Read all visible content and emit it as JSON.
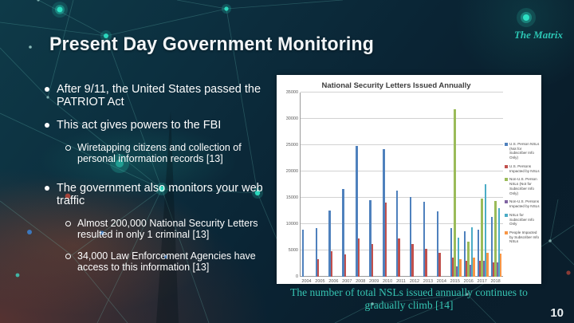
{
  "slide": {
    "title": "Present Day Government Monitoring",
    "watermark": "The Matrix",
    "caption": "The number of total NSLs issued annually continues to gradually climb [14]",
    "page_number": "10"
  },
  "bullets": [
    {
      "level": 1,
      "text": "After 9/11, the United States passed the PATRIOT Act"
    },
    {
      "level": 1,
      "text": "This act gives powers to the FBI"
    },
    {
      "level": 2,
      "text": "Wiretapping citizens and collection of personal information records [13]"
    },
    {
      "level": 1,
      "text": "The government also monitors your web traffic"
    },
    {
      "level": 2,
      "text": "Almost 200,000 National Security Letters resulted in only 1 criminal [13]"
    },
    {
      "level": 2,
      "text": "34,000 Law Enforcement Agencies have access to this information [13]"
    }
  ],
  "chart_data": {
    "type": "bar",
    "title": "National Security Letters Issued Annually",
    "categories": [
      "2004",
      "2005",
      "2006",
      "2007",
      "2008",
      "2009",
      "2010",
      "2011",
      "2012",
      "2013",
      "2014",
      "2015",
      "2016",
      "2017",
      "2018"
    ],
    "series": [
      {
        "name": "U.S. Person NSLs (Not for Subscriber Info Only)",
        "color": "#4F81BD",
        "values": [
          8900,
          9300,
          12600,
          16700,
          24800,
          14600,
          24300,
          16400,
          15100,
          14200,
          12400,
          9300,
          8700,
          8900,
          11400
        ]
      },
      {
        "name": "U.S. Persons Impacted by NSLs",
        "color": "#C0504D",
        "values": [
          null,
          3400,
          4800,
          4300,
          7200,
          6200,
          14100,
          7200,
          6200,
          5300,
          4600,
          3600,
          3100,
          3000,
          2700
        ]
      },
      {
        "name": "Non-U.S. Person NSLs (Not for Subscriber Info Only)",
        "color": "#9BBB59",
        "values": [
          null,
          null,
          null,
          null,
          null,
          null,
          null,
          null,
          null,
          null,
          null,
          31800,
          6600,
          14800,
          14400
        ]
      },
      {
        "name": "Non-U.S. Persons Impacted by NSLs",
        "color": "#8064A2",
        "values": [
          null,
          null,
          null,
          null,
          null,
          null,
          null,
          null,
          null,
          null,
          null,
          1900,
          2200,
          3000,
          2800
        ]
      },
      {
        "name": "NSLs for Subscriber Info Only",
        "color": "#4BACC6",
        "values": [
          null,
          null,
          null,
          null,
          null,
          null,
          null,
          null,
          null,
          null,
          null,
          7400,
          9400,
          17600,
          13000
        ]
      },
      {
        "name": "People Impacted by Subscriber Info NSLs",
        "color": "#F79646",
        "values": [
          null,
          null,
          null,
          null,
          null,
          null,
          null,
          null,
          null,
          null,
          null,
          3400,
          3700,
          4600,
          4400
        ]
      }
    ],
    "ylim": [
      0,
      35000
    ],
    "ytick_step": 5000,
    "grid": true,
    "legend_position": "right"
  }
}
